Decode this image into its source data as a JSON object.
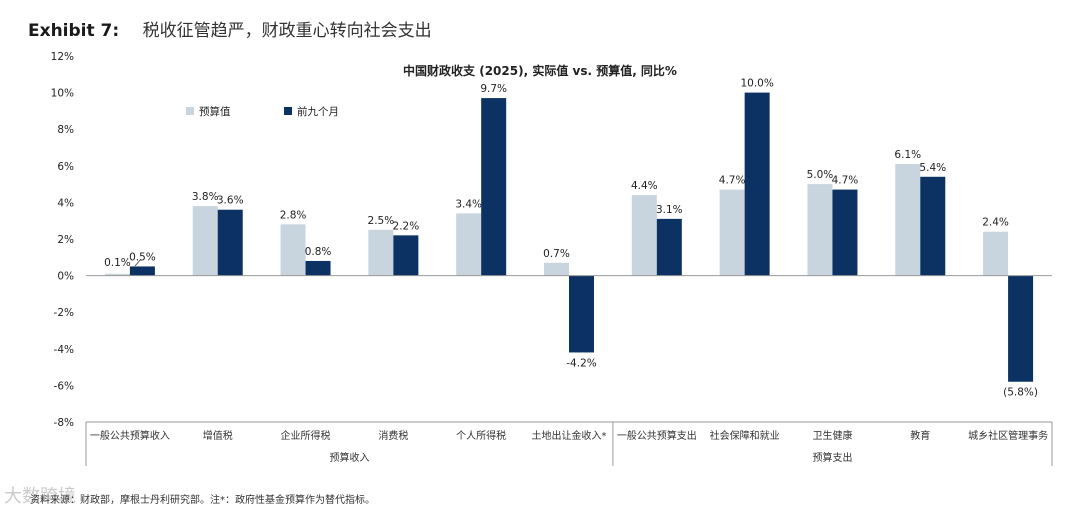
{
  "header": {
    "exhibit": "Exhibit 7:",
    "title": "税收征管趋严，财政重心转向社会支出"
  },
  "chart_data": {
    "type": "bar",
    "title": "中国财政收支 (2025), 实际值 vs. 预算值, 同比%",
    "ylim": [
      -8,
      12
    ],
    "yticks": [
      12,
      10,
      8,
      6,
      4,
      2,
      0,
      -2,
      -4,
      -6,
      -8
    ],
    "ytick_labels": [
      "12%",
      "10%",
      "8%",
      "6%",
      "4%",
      "2%",
      "0%",
      "-2%",
      "-4%",
      "-6%",
      "-8%"
    ],
    "categories": [
      "一般公共预算收入",
      "增值税",
      "企业所得税",
      "消费税",
      "个人所得税",
      "土地出让金收入*",
      "一般公共预算支出",
      "社会保障和就业",
      "卫生健康",
      "教育",
      "城乡社区管理事务"
    ],
    "series": [
      {
        "name": "预算值",
        "color": "#c8d5de",
        "values": [
          0.1,
          3.8,
          2.8,
          2.5,
          3.4,
          0.7,
          4.4,
          4.7,
          5.0,
          6.1,
          2.4
        ],
        "labels": [
          "0.1%",
          "3.8%",
          "2.8%",
          "2.5%",
          "3.4%",
          "0.7%",
          "4.4%",
          "4.7%",
          "5.0%",
          "6.1%",
          "2.4%"
        ]
      },
      {
        "name": "前九个月",
        "color": "#0b3262",
        "values": [
          0.5,
          3.6,
          0.8,
          2.2,
          9.7,
          -4.2,
          3.1,
          10.0,
          4.7,
          5.4,
          -5.8
        ],
        "labels": [
          "0.5%",
          "3.6%",
          "0.8%",
          "2.2%",
          "9.7%",
          "-4.2%",
          "3.1%",
          "10.0%",
          "4.7%",
          "5.4%",
          "(5.8%)"
        ]
      }
    ],
    "groups": [
      {
        "label": "预算收入",
        "from": 0,
        "to": 5
      },
      {
        "label": "预算支出",
        "from": 6,
        "to": 10
      }
    ]
  },
  "footer": {
    "source": "资料来源：财政部，摩根士丹利研究部。注*：政府性基金预算作为替代指标。",
    "watermark": "大数跨境"
  }
}
